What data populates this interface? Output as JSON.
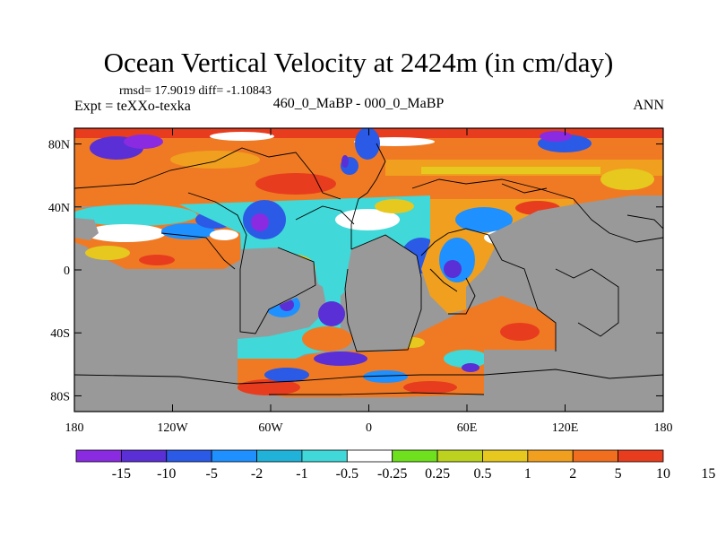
{
  "title": "Ocean Vertical Velocity at 2424m (in cm/day)",
  "stats_line": "rmsd= 17.9019 diff= -1.10843",
  "experiment": "Expt = teXXo-texka",
  "case_label": "460_0_MaBP - 000_0_MaBP",
  "season": "ANN",
  "map": {
    "projection": "cylindrical-equidistant",
    "lon_range": [
      -180,
      180
    ],
    "lat_range": [
      -90,
      90
    ],
    "land_color": "#999999",
    "x_ticks": [
      {
        "lon": -180,
        "label": "180"
      },
      {
        "lon": -120,
        "label": "120W"
      },
      {
        "lon": -60,
        "label": "60W"
      },
      {
        "lon": 0,
        "label": "0"
      },
      {
        "lon": 60,
        "label": "60E"
      },
      {
        "lon": 120,
        "label": "120E"
      },
      {
        "lon": 180,
        "label": "180"
      }
    ],
    "y_ticks": [
      {
        "lat": 80,
        "label": "80N"
      },
      {
        "lat": 40,
        "label": "40N"
      },
      {
        "lat": 0,
        "label": "0"
      },
      {
        "lat": -40,
        "label": "40S"
      },
      {
        "lat": -80,
        "label": "80S"
      }
    ]
  },
  "colorbar": {
    "colors": [
      "#8a2be2",
      "#5a2fd6",
      "#2a5ae6",
      "#1e90ff",
      "#20b2d8",
      "#40d8d8",
      "#ffffff",
      "#6ee01e",
      "#bcd21e",
      "#e6c81e",
      "#f0a01e",
      "#f06e1e",
      "#e83c1e"
    ],
    "labels": [
      "-15",
      "-10",
      "-5",
      "-2",
      "-1",
      "-0.5",
      "-0.25",
      "0.25",
      "0.5",
      "1",
      "2",
      "5",
      "10",
      "15"
    ]
  }
}
